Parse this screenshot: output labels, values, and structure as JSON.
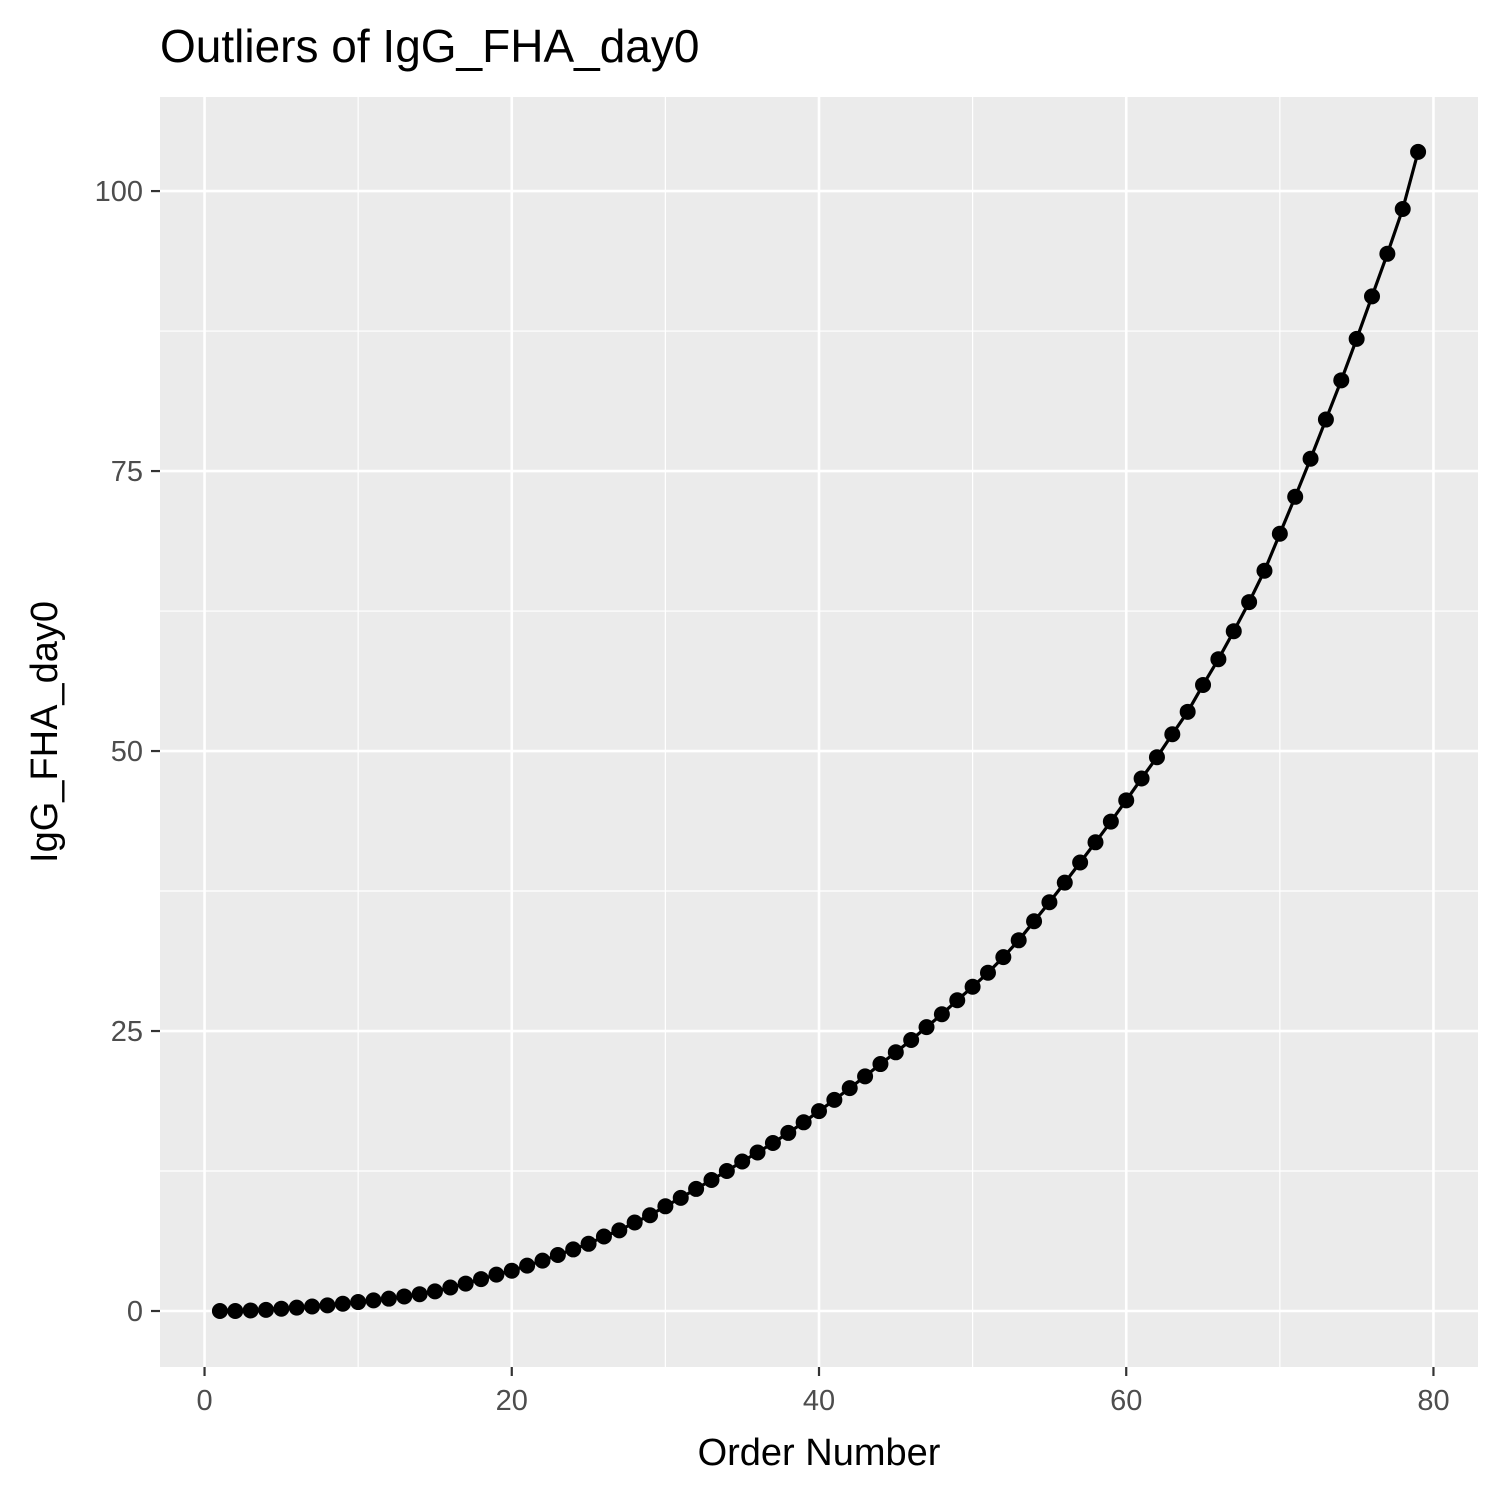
{
  "chart_data": {
    "type": "line",
    "title": "Outliers of IgG_FHA_day0",
    "xlabel": "Order Number",
    "ylabel": "IgG_FHA_day0",
    "xlim": [
      -2.9,
      82.9
    ],
    "ylim": [
      -5.0,
      108.4
    ],
    "xticks": [
      0,
      20,
      40,
      60,
      80
    ],
    "yticks": [
      0,
      25,
      50,
      75,
      100
    ],
    "xtick_labels": [
      "0",
      "20",
      "40",
      "60",
      "80"
    ],
    "ytick_labels": [
      "0",
      "25",
      "50",
      "75",
      "100"
    ],
    "grid": true,
    "legend": "none",
    "colors": {
      "panel_background": "#ebebeb",
      "grid": "#ffffff",
      "series": "#000000",
      "tick_text": "#4d4d4d",
      "tick_mark": "#333333"
    },
    "series": [
      {
        "x": [
          1,
          2,
          3,
          4,
          5,
          6,
          7,
          8,
          9,
          10,
          11,
          12,
          13,
          14,
          15,
          16,
          17,
          18,
          19,
          20,
          21,
          22,
          23,
          24,
          25,
          26,
          27,
          28,
          29,
          30,
          31,
          32,
          33,
          34,
          35,
          36,
          37,
          38,
          39,
          40,
          41,
          42,
          43,
          44,
          45,
          46,
          47,
          48,
          49,
          50,
          51,
          52,
          53,
          54,
          55,
          56,
          57,
          58,
          59,
          60,
          61,
          62,
          63,
          64,
          65,
          66,
          67,
          68,
          69,
          70,
          71,
          72,
          73,
          74,
          75,
          76,
          77,
          78,
          79
        ],
        "y": [
          0.0,
          0.0,
          0.05,
          0.1,
          0.2,
          0.3,
          0.4,
          0.5,
          0.65,
          0.8,
          0.95,
          1.1,
          1.3,
          1.5,
          1.75,
          2.1,
          2.45,
          2.85,
          3.25,
          3.6,
          4.05,
          4.5,
          5.0,
          5.5,
          6.0,
          6.65,
          7.2,
          7.9,
          8.55,
          9.35,
          10.1,
          10.9,
          11.7,
          12.5,
          13.35,
          14.15,
          15.0,
          15.9,
          16.85,
          17.85,
          18.85,
          19.9,
          20.95,
          22.05,
          23.1,
          24.2,
          25.35,
          26.5,
          27.75,
          28.95,
          30.2,
          31.6,
          33.1,
          34.8,
          36.5,
          38.25,
          40.05,
          41.85,
          43.7,
          45.6,
          47.55,
          49.45,
          51.5,
          53.5,
          55.9,
          58.2,
          60.7,
          63.3,
          66.1,
          69.4,
          72.7,
          76.1,
          79.6,
          83.1,
          86.8,
          90.6,
          94.4,
          98.4,
          103.5
        ]
      }
    ]
  }
}
